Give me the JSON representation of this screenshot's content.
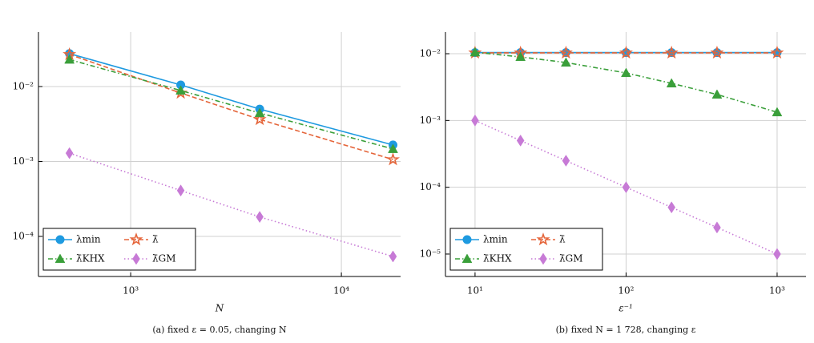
{
  "chart_data": [
    {
      "type": "line",
      "x_label": "N",
      "caption": "(a) fixed ε = 0.05, changing N",
      "x": [
        512,
        1728,
        4096,
        17576
      ],
      "log_x": true,
      "log_y": true,
      "grid": true,
      "legend": "lower left",
      "xlim": [
        365,
        19100
      ],
      "ylim": [
        2.92e-05,
        0.0533
      ],
      "xticks": [
        {
          "value": 1000,
          "label": "10³"
        },
        {
          "value": 10000,
          "label": "10⁴"
        }
      ],
      "yticks": [
        {
          "value": 0.0001,
          "label": "10⁻⁴"
        },
        {
          "value": 0.001,
          "label": "10⁻³"
        },
        {
          "value": 0.01,
          "label": "10⁻²"
        }
      ],
      "series": [
        {
          "name": "λmin",
          "color": "#1e9ae0",
          "marker": "circle",
          "dash": "solid",
          "values": [
            0.0275,
            0.0105,
            0.005,
            0.00166
          ]
        },
        {
          "name": "λ̄",
          "color": "#e5653a",
          "marker": "star",
          "dash": "dashed",
          "values": [
            0.0268,
            0.0082,
            0.00364,
            0.00106
          ]
        },
        {
          "name": "λ̄KHX",
          "color": "#3a9f3a",
          "marker": "triangle",
          "dash": "dashdot",
          "values": [
            0.0229,
            0.00885,
            0.00443,
            0.00147
          ]
        },
        {
          "name": "λ̄GM",
          "color": "#c77ad6",
          "marker": "diamond",
          "dash": "dotted",
          "values": [
            0.00129,
            0.00041,
            0.000182,
            5.4e-05
          ]
        }
      ]
    },
    {
      "type": "line",
      "x_label": "ε⁻¹",
      "caption": "(b) fixed N = 1 728, changing ε",
      "x": [
        10,
        20,
        40,
        100,
        200,
        400,
        1000
      ],
      "log_x": true,
      "log_y": true,
      "grid": true,
      "legend": "lower left",
      "xlim": [
        6.37,
        1553
      ],
      "ylim": [
        4.61e-06,
        0.0211
      ],
      "xticks": [
        {
          "value": 10,
          "label": "10¹"
        },
        {
          "value": 100,
          "label": "10²"
        },
        {
          "value": 1000,
          "label": "10³"
        }
      ],
      "yticks": [
        {
          "value": 1e-05,
          "label": "10⁻⁵"
        },
        {
          "value": 0.0001,
          "label": "10⁻⁴"
        },
        {
          "value": 0.001,
          "label": "10⁻³"
        },
        {
          "value": 0.01,
          "label": "10⁻²"
        }
      ],
      "series": [
        {
          "name": "λmin",
          "color": "#1e9ae0",
          "marker": "circle",
          "dash": "solid",
          "values": [
            0.0104,
            0.0104,
            0.0104,
            0.0104,
            0.0104,
            0.0104,
            0.0104
          ]
        },
        {
          "name": "λ̄",
          "color": "#e5653a",
          "marker": "star",
          "dash": "dashed",
          "values": [
            0.0103,
            0.0103,
            0.0103,
            0.0103,
            0.0103,
            0.0103,
            0.0103
          ]
        },
        {
          "name": "λ̄KHX",
          "color": "#3a9f3a",
          "marker": "triangle",
          "dash": "dashdot",
          "values": [
            0.0105,
            0.00895,
            0.00738,
            0.00515,
            0.0036,
            0.00245,
            0.00133
          ]
        },
        {
          "name": "λ̄GM",
          "color": "#c77ad6",
          "marker": "diamond",
          "dash": "dotted",
          "values": [
            0.001,
            0.0005,
            0.00025,
            0.0001,
            5e-05,
            2.5e-05,
            1e-05
          ]
        }
      ]
    }
  ]
}
